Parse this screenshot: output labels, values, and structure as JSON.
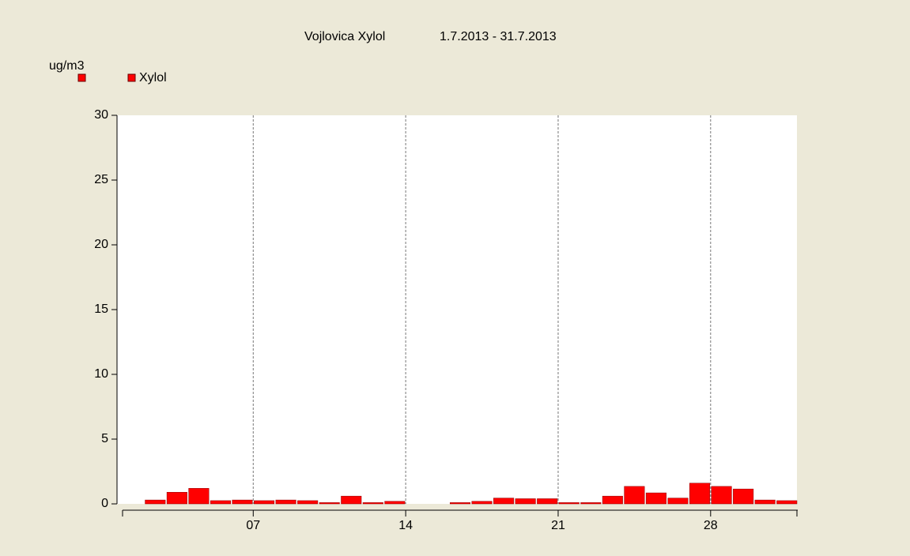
{
  "chart_data": {
    "type": "bar",
    "title": "Vojlovica Xylol",
    "subtitle": "1.7.2013 - 31.7.2013",
    "y_label": "ug/m3",
    "series": [
      {
        "name": "Xylol",
        "color": "#ff0000",
        "values": [
          null,
          0.3,
          0.9,
          1.2,
          0.25,
          0.3,
          0.25,
          0.3,
          0.25,
          0.1,
          0.6,
          0.1,
          0.2,
          null,
          null,
          0.1,
          0.2,
          0.45,
          0.4,
          0.4,
          0.1,
          0.1,
          0.6,
          1.35,
          0.85,
          0.45,
          1.6,
          1.35,
          1.15,
          0.3,
          0.25
        ]
      }
    ],
    "x": [
      1,
      2,
      3,
      4,
      5,
      6,
      7,
      8,
      9,
      10,
      11,
      12,
      13,
      14,
      15,
      16,
      17,
      18,
      19,
      20,
      21,
      22,
      23,
      24,
      25,
      26,
      27,
      28,
      29,
      30,
      31
    ],
    "xlim": [
      1,
      32
    ],
    "xticks": [
      {
        "value": 7,
        "label": "07"
      },
      14,
      21,
      28
    ],
    "ylim": [
      0,
      30
    ],
    "yticks": [
      0,
      5,
      10,
      15,
      20,
      25,
      30
    ],
    "grid": true
  }
}
